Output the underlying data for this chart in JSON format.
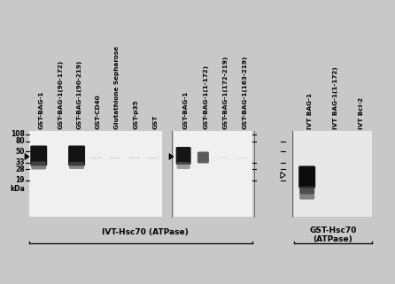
{
  "bg_color": "#c8c8c8",
  "blot_bg": "#f0f0f0",
  "blot_bg2": "#e8e8e8",
  "band_dark": "#111111",
  "band_mid": "#444444",
  "band_light": "#888888",
  "lane_labels_left": [
    "GST-BAG-1",
    "GST-BAG-1(90-172)",
    "GST-BAG-1(90-219)",
    "GST-CD40",
    "Glutathione Sepharose",
    "GST-p35",
    "GST"
  ],
  "lane_labels_mid": [
    "GST-BAG-1",
    "GST-BAG-1(1-172)",
    "GST-BAG-1(172-219)",
    "GST-BAG-1(163-219)"
  ],
  "lane_labels_right": [
    "IVT BAG-1",
    "IVT BAG-1(1-172)",
    "IVT Bcl-2"
  ],
  "mw_left_labels": [
    "108",
    "80",
    "50",
    "33",
    "28",
    "19"
  ],
  "mw_left_y": [
    152,
    160,
    171,
    184,
    191,
    204
  ],
  "panel1_label": "IVT-Hsc70 (ATPase)",
  "panel2_label": "GST-Hsc70\n(ATPase)",
  "label_fontsize": 5.2,
  "mw_fontsize": 5.5,
  "panel_fontsize": 6.5
}
